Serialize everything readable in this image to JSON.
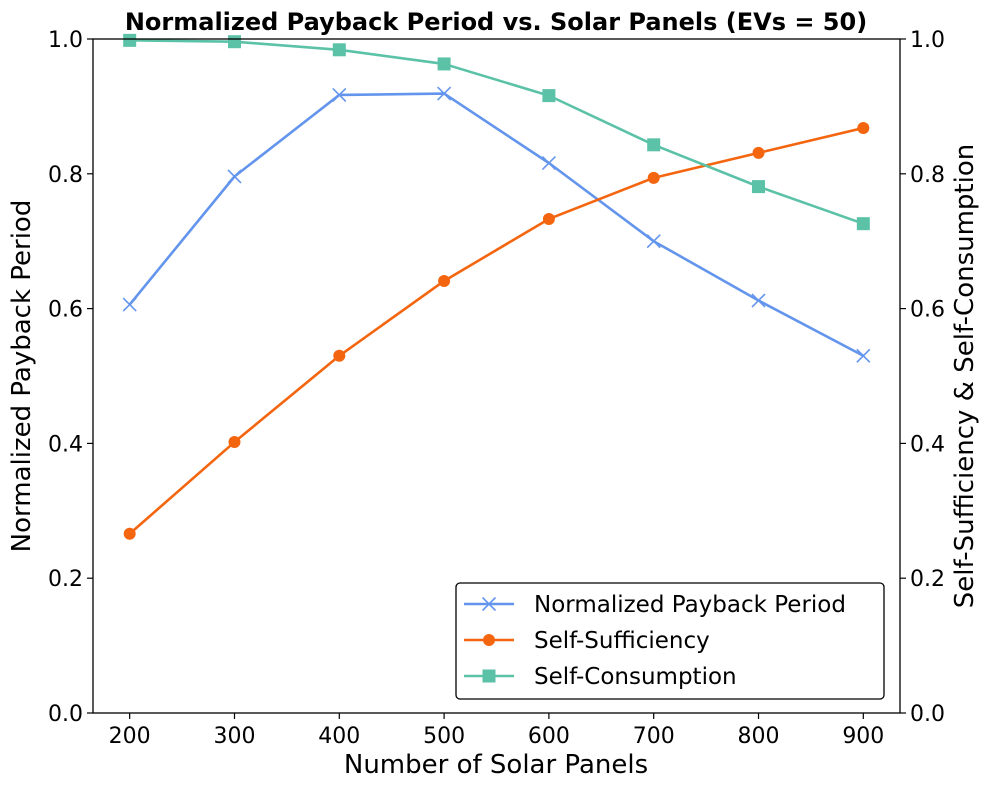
{
  "chart_data": {
    "type": "line",
    "title": "Normalized Payback Period vs. Solar Panels (EVs = 50)",
    "xlabel": "Number of Solar Panels",
    "ylabel_left": "Normalized Payback Period",
    "ylabel_right": "Self-Sufficiency & Self-Consumption",
    "x": [
      200,
      300,
      400,
      500,
      600,
      700,
      800,
      900
    ],
    "x_ticks": [
      "200",
      "300",
      "400",
      "500",
      "600",
      "700",
      "800",
      "900"
    ],
    "xlim": [
      165,
      935
    ],
    "ylim_left": [
      0,
      1
    ],
    "ylim_right": [
      0,
      1
    ],
    "y_ticks_left": [
      "0.0",
      "0.2",
      "0.4",
      "0.6",
      "0.8",
      "1.0"
    ],
    "y_ticks_right": [
      "0.0",
      "0.2",
      "0.4",
      "0.6",
      "0.8",
      "1.0"
    ],
    "grid": false,
    "legend_position": "lower-right",
    "series": [
      {
        "name": "Normalized Payback Period",
        "axis": "left",
        "marker": "x",
        "color": "#6495ED",
        "values": [
          0.606,
          0.796,
          0.917,
          0.919,
          0.816,
          0.7,
          0.612,
          0.53
        ]
      },
      {
        "name": "Self-Sufficiency",
        "axis": "right",
        "marker": "circle",
        "color": "#F4650F",
        "values": [
          0.266,
          0.402,
          0.53,
          0.641,
          0.733,
          0.794,
          0.831,
          0.868
        ]
      },
      {
        "name": "Self-Consumption",
        "axis": "right",
        "marker": "square",
        "color": "#5BC2A8",
        "values": [
          0.998,
          0.996,
          0.984,
          0.963,
          0.916,
          0.843,
          0.781,
          0.726
        ]
      }
    ]
  }
}
